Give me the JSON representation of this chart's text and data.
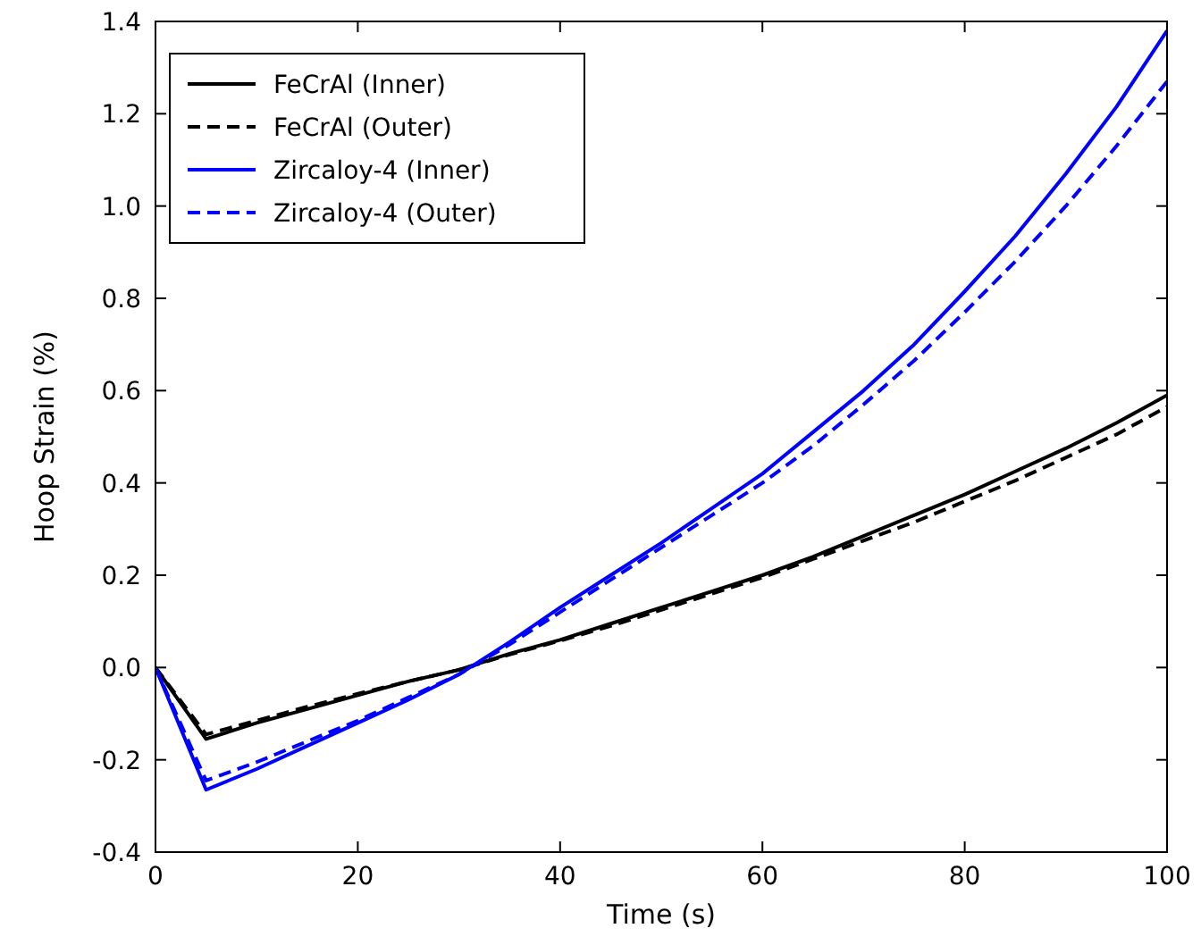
{
  "chart_data": {
    "type": "line",
    "xlabel": "Time (s)",
    "ylabel": "Hoop Strain (%)",
    "xlim": [
      0,
      100
    ],
    "ylim": [
      -0.4,
      1.4
    ],
    "xticks": [
      0,
      20,
      40,
      60,
      80,
      100
    ],
    "yticks": [
      {
        "value": -0.4,
        "label": "-0.4"
      },
      {
        "value": -0.2,
        "label": "-0.2"
      },
      {
        "value": 0,
        "label": "0.0"
      },
      {
        "value": 0.2,
        "label": "0.2"
      },
      {
        "value": 0.4,
        "label": "0.4"
      },
      {
        "value": 0.6,
        "label": "0.6"
      },
      {
        "value": 0.8,
        "label": "0.8"
      },
      {
        "value": 1.0,
        "label": "1.0"
      },
      {
        "value": 1.2,
        "label": "1.2"
      },
      {
        "value": 1.4,
        "label": "1.4"
      }
    ],
    "x": [
      0,
      5,
      10,
      15,
      20,
      25,
      30,
      35,
      40,
      45,
      50,
      55,
      60,
      65,
      70,
      75,
      80,
      85,
      90,
      95,
      100
    ],
    "grid": false,
    "legend": "top left",
    "marker": "none",
    "series": [
      {
        "name": "FeCrAl (Inner)",
        "color": "#000000",
        "line_style": "solid",
        "values": [
          0,
          -0.155,
          -0.12,
          -0.09,
          -0.06,
          -0.03,
          -0.005,
          0.03,
          0.06,
          0.095,
          0.13,
          0.165,
          0.2,
          0.24,
          0.285,
          0.33,
          0.375,
          0.425,
          0.475,
          0.53,
          0.59
        ]
      },
      {
        "name": "FeCrAl (Outer)",
        "color": "#000000",
        "line_style": "dashed",
        "values": [
          0,
          -0.145,
          -0.115,
          -0.085,
          -0.057,
          -0.03,
          -0.005,
          0.028,
          0.058,
          0.09,
          0.125,
          0.16,
          0.195,
          0.235,
          0.275,
          0.315,
          0.36,
          0.405,
          0.455,
          0.505,
          0.565
        ]
      },
      {
        "name": "Zircaloy-4 (Inner)",
        "color": "#0000ff",
        "line_style": "solid",
        "values": [
          0,
          -0.265,
          -0.22,
          -0.17,
          -0.12,
          -0.07,
          -0.015,
          0.055,
          0.13,
          0.2,
          0.27,
          0.345,
          0.42,
          0.51,
          0.6,
          0.7,
          0.815,
          0.935,
          1.07,
          1.215,
          1.38
        ]
      },
      {
        "name": "Zircaloy-4 (Outer)",
        "color": "#0000ff",
        "line_style": "dashed",
        "values": [
          0,
          -0.245,
          -0.205,
          -0.16,
          -0.115,
          -0.065,
          -0.015,
          0.05,
          0.12,
          0.19,
          0.26,
          0.33,
          0.4,
          0.48,
          0.57,
          0.665,
          0.77,
          0.88,
          1.0,
          1.13,
          1.27
        ]
      }
    ]
  }
}
